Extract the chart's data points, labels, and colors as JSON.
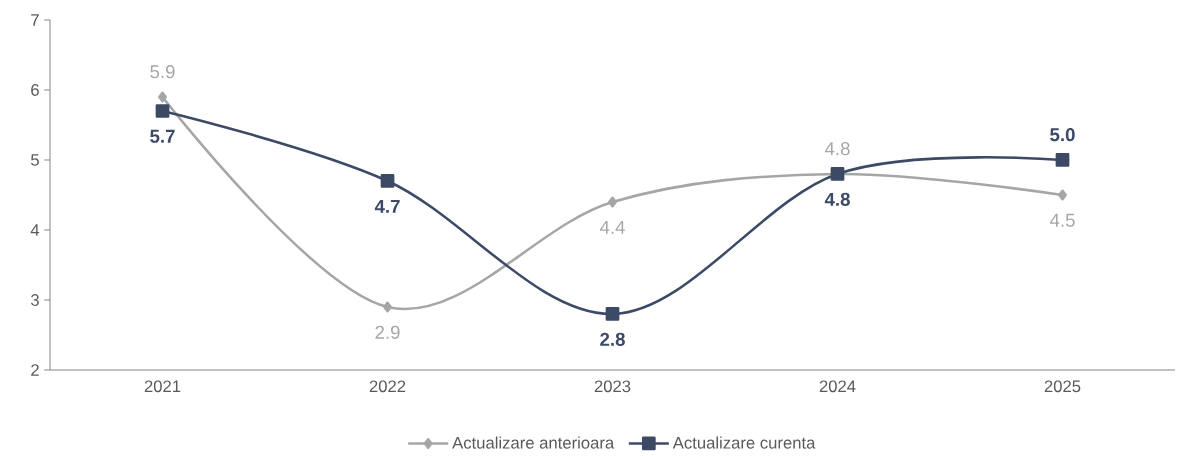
{
  "chart_data": {
    "type": "line",
    "categories": [
      "2021",
      "2022",
      "2023",
      "2024",
      "2025"
    ],
    "series": [
      {
        "name": "Actualizare anterioara",
        "color": "#a6a6a6",
        "marker": "diamond",
        "values": [
          5.9,
          2.9,
          4.4,
          4.8,
          4.5
        ],
        "value_labels": [
          "5.9",
          "2.9",
          "4.4",
          "4.8",
          "4.5"
        ]
      },
      {
        "name": "Actualizare curenta",
        "color": "#3c4a66",
        "marker": "square",
        "values": [
          5.7,
          4.7,
          2.8,
          4.8,
          5.0
        ],
        "value_labels": [
          "5.7",
          "4.7",
          "2.8",
          "4.8",
          "5.0"
        ]
      }
    ],
    "ylim": [
      2,
      7
    ],
    "yticks": [
      2,
      3,
      4,
      5,
      6,
      7
    ],
    "grid": false,
    "legend": "bottom",
    "line_style": "solid"
  }
}
